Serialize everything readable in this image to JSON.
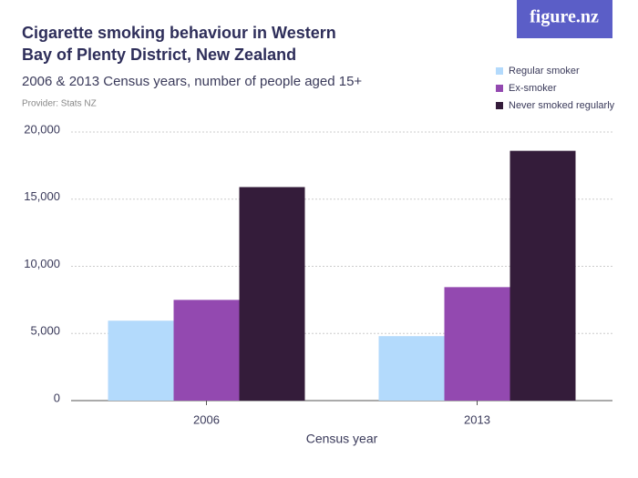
{
  "chart_data": {
    "type": "grouped_bar",
    "title": "Cigarette smoking behaviour in Western Bay of Plenty District, New Zealand",
    "subtitle": "2006 & 2013 Census years, number of people aged 15+",
    "provider": "Provider: Stats NZ",
    "logo": "figure.nz",
    "x_label": "Census year",
    "categories": [
      "2006",
      "2013"
    ],
    "series": [
      {
        "name": "Regular smoker",
        "color": "#b3dafc",
        "values": [
          5950,
          4800
        ]
      },
      {
        "name": "Ex-smoker",
        "color": "#9349b0",
        "values": [
          7500,
          8450
        ]
      },
      {
        "name": "Never smoked regularly",
        "color": "#341c3a",
        "values": [
          15900,
          18600
        ]
      }
    ],
    "ylim": [
      0,
      20000
    ],
    "yticks": [
      0,
      {
        "value": 5000,
        "label": "5,000"
      },
      {
        "value": 10000,
        "label": "10,000"
      },
      {
        "value": 15000,
        "label": "15,000"
      },
      {
        "value": 20000,
        "label": "20,000"
      }
    ],
    "grid": true
  }
}
